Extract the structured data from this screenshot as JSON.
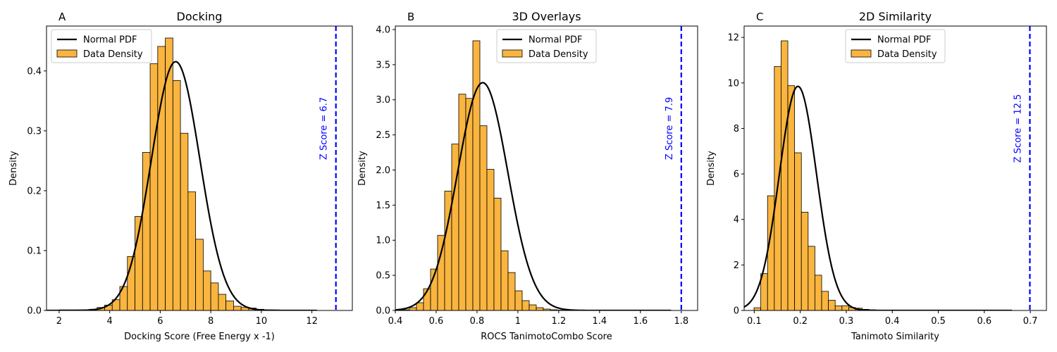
{
  "chart_data": [
    {
      "type": "bar",
      "panel_letter": "A",
      "title": "Docking",
      "xlabel": "Docking Score (Free Energy x -1)",
      "ylabel": "Density",
      "xlim": [
        1.5,
        13.6
      ],
      "ylim": [
        0,
        0.475
      ],
      "xticks": [
        2,
        4,
        6,
        8,
        10,
        12
      ],
      "yticks": [
        0.0,
        0.1,
        0.2,
        0.3,
        0.4
      ],
      "ytick_decimals": 1,
      "bin_width": 0.3,
      "bins": [
        {
          "x": 2.0,
          "value": 0.001
        },
        {
          "x": 2.3,
          "value": 0.001
        },
        {
          "x": 2.6,
          "value": 0.001
        },
        {
          "x": 2.9,
          "value": 0.001
        },
        {
          "x": 3.2,
          "value": 0.002
        },
        {
          "x": 3.5,
          "value": 0.005
        },
        {
          "x": 3.8,
          "value": 0.009
        },
        {
          "x": 4.1,
          "value": 0.018
        },
        {
          "x": 4.4,
          "value": 0.04
        },
        {
          "x": 4.7,
          "value": 0.09
        },
        {
          "x": 5.0,
          "value": 0.157
        },
        {
          "x": 5.3,
          "value": 0.264
        },
        {
          "x": 5.6,
          "value": 0.412
        },
        {
          "x": 5.9,
          "value": 0.441
        },
        {
          "x": 6.2,
          "value": 0.455
        },
        {
          "x": 6.5,
          "value": 0.384
        },
        {
          "x": 6.8,
          "value": 0.296
        },
        {
          "x": 7.1,
          "value": 0.198
        },
        {
          "x": 7.4,
          "value": 0.119
        },
        {
          "x": 7.7,
          "value": 0.066
        },
        {
          "x": 8.0,
          "value": 0.046
        },
        {
          "x": 8.3,
          "value": 0.027
        },
        {
          "x": 8.6,
          "value": 0.016
        },
        {
          "x": 8.9,
          "value": 0.007
        },
        {
          "x": 9.2,
          "value": 0.005
        },
        {
          "x": 9.5,
          "value": 0.004
        },
        {
          "x": 9.8,
          "value": 0.002
        },
        {
          "x": 10.1,
          "value": 0.001
        },
        {
          "x": 10.4,
          "value": 0.001
        },
        {
          "x": 10.7,
          "value": 0.0005
        },
        {
          "x": 11.0,
          "value": 0.0005
        },
        {
          "x": 11.3,
          "value": 0.0003
        },
        {
          "x": 11.6,
          "value": 0.0003
        },
        {
          "x": 11.9,
          "value": 0.0002
        }
      ],
      "normal_pdf": {
        "mean": 6.61,
        "sd": 0.96,
        "x_range": [
          1.5,
          12.2
        ]
      },
      "threshold": {
        "x": 12.95,
        "label": "Z Score = 6.7",
        "color": "#0000ff"
      },
      "legend": {
        "position": "upper-left",
        "entries": [
          "Normal PDF",
          "Data Density"
        ]
      }
    },
    {
      "type": "bar",
      "panel_letter": "B",
      "title": "3D Overlays",
      "xlabel": "ROCS TanimotoCombo Score",
      "ylabel": "Density",
      "xlim": [
        0.4,
        1.88
      ],
      "ylim": [
        0,
        4.05
      ],
      "xticks": [
        0.4,
        0.6,
        0.8,
        1.0,
        1.2,
        1.4,
        1.6,
        1.8
      ],
      "yticks": [
        0.0,
        0.5,
        1.0,
        1.5,
        2.0,
        2.5,
        3.0,
        3.5,
        4.0
      ],
      "ytick_decimals": 1,
      "bin_width": 0.0345,
      "bins": [
        {
          "x": 0.4,
          "value": 0.005
        },
        {
          "x": 0.4345,
          "value": 0.01
        },
        {
          "x": 0.469,
          "value": 0.04
        },
        {
          "x": 0.5035,
          "value": 0.11
        },
        {
          "x": 0.538,
          "value": 0.31
        },
        {
          "x": 0.5725,
          "value": 0.59
        },
        {
          "x": 0.607,
          "value": 1.07
        },
        {
          "x": 0.6415,
          "value": 1.7
        },
        {
          "x": 0.676,
          "value": 2.37
        },
        {
          "x": 0.7105,
          "value": 3.08
        },
        {
          "x": 0.745,
          "value": 3.02
        },
        {
          "x": 0.7795,
          "value": 3.84
        },
        {
          "x": 0.814,
          "value": 2.63
        },
        {
          "x": 0.8485,
          "value": 2.01
        },
        {
          "x": 0.883,
          "value": 1.6
        },
        {
          "x": 0.9175,
          "value": 0.85
        },
        {
          "x": 0.952,
          "value": 0.54
        },
        {
          "x": 0.9865,
          "value": 0.28
        },
        {
          "x": 1.021,
          "value": 0.14
        },
        {
          "x": 1.0555,
          "value": 0.08
        },
        {
          "x": 1.09,
          "value": 0.04
        },
        {
          "x": 1.1245,
          "value": 0.02
        },
        {
          "x": 1.159,
          "value": 0.01
        },
        {
          "x": 1.1935,
          "value": 0.005
        },
        {
          "x": 1.228,
          "value": 0.004
        },
        {
          "x": 1.2625,
          "value": 0.003
        },
        {
          "x": 1.297,
          "value": 0.002
        },
        {
          "x": 1.3315,
          "value": 0.001
        },
        {
          "x": 1.366,
          "value": 0.001
        },
        {
          "x": 1.4005,
          "value": 0.001
        },
        {
          "x": 1.435,
          "value": 0.001
        },
        {
          "x": 1.4695,
          "value": 0.0005
        },
        {
          "x": 1.504,
          "value": 0.0005
        },
        {
          "x": 1.5385,
          "value": 0.0005
        },
        {
          "x": 1.573,
          "value": 0.0005
        },
        {
          "x": 1.6075,
          "value": 0.0003
        },
        {
          "x": 1.642,
          "value": 0.0003
        },
        {
          "x": 1.6765,
          "value": 0.0003
        },
        {
          "x": 1.711,
          "value": 0.0003
        }
      ],
      "normal_pdf": {
        "mean": 0.828,
        "sd": 0.123,
        "x_range": [
          0.4,
          1.75
        ]
      },
      "threshold": {
        "x": 1.8,
        "label": "Z Score = 7.9",
        "color": "#0000ff"
      },
      "legend": {
        "position": "upper-center",
        "entries": [
          "Normal PDF",
          "Data Density"
        ]
      }
    },
    {
      "type": "bar",
      "panel_letter": "C",
      "title": "2D Similarity",
      "xlabel": "Tanimoto Similarity",
      "ylabel": "Density",
      "xlim": [
        0.078,
        0.735
      ],
      "ylim": [
        0,
        12.5
      ],
      "xticks": [
        0.1,
        0.2,
        0.3,
        0.4,
        0.5,
        0.6,
        0.7
      ],
      "yticks": [
        0,
        2,
        4,
        6,
        8,
        10,
        12
      ],
      "ytick_decimals": 0,
      "bin_width": 0.0147,
      "bins": [
        {
          "x": 0.0995,
          "value": 0.12
        },
        {
          "x": 0.1142,
          "value": 1.62
        },
        {
          "x": 0.1289,
          "value": 5.04
        },
        {
          "x": 0.1436,
          "value": 10.72
        },
        {
          "x": 0.1583,
          "value": 11.85
        },
        {
          "x": 0.173,
          "value": 9.88
        },
        {
          "x": 0.1877,
          "value": 6.93
        },
        {
          "x": 0.2024,
          "value": 4.32
        },
        {
          "x": 0.2171,
          "value": 2.82
        },
        {
          "x": 0.2318,
          "value": 1.55
        },
        {
          "x": 0.2465,
          "value": 0.84
        },
        {
          "x": 0.2612,
          "value": 0.45
        },
        {
          "x": 0.2759,
          "value": 0.2
        },
        {
          "x": 0.2906,
          "value": 0.21
        },
        {
          "x": 0.3053,
          "value": 0.13
        },
        {
          "x": 0.32,
          "value": 0.1
        },
        {
          "x": 0.3347,
          "value": 0.05
        },
        {
          "x": 0.3494,
          "value": 0.03
        },
        {
          "x": 0.3641,
          "value": 0.02
        },
        {
          "x": 0.3788,
          "value": 0.01
        },
        {
          "x": 0.3935,
          "value": 0.01
        },
        {
          "x": 0.4082,
          "value": 0.005
        },
        {
          "x": 0.4229,
          "value": 0.005
        },
        {
          "x": 0.4376,
          "value": 0.004
        },
        {
          "x": 0.4523,
          "value": 0.003
        },
        {
          "x": 0.467,
          "value": 0.003
        },
        {
          "x": 0.4817,
          "value": 0.002
        },
        {
          "x": 0.4964,
          "value": 0.002
        },
        {
          "x": 0.5111,
          "value": 0.002
        },
        {
          "x": 0.5258,
          "value": 0.001
        },
        {
          "x": 0.5405,
          "value": 0.001
        },
        {
          "x": 0.5552,
          "value": 0.001
        },
        {
          "x": 0.5699,
          "value": 0.001
        },
        {
          "x": 0.5846,
          "value": 0.001
        },
        {
          "x": 0.5993,
          "value": 0.001
        },
        {
          "x": 0.614,
          "value": 0.001
        },
        {
          "x": 0.6287,
          "value": 0.001
        },
        {
          "x": 0.6434,
          "value": 0.001
        }
      ],
      "normal_pdf": {
        "mean": 0.195,
        "sd": 0.0405,
        "x_range": [
          0.078,
          0.66
        ]
      },
      "threshold": {
        "x": 0.699,
        "label": "Z Score = 12.5",
        "color": "#0000ff"
      },
      "legend": {
        "position": "upper-center",
        "entries": [
          "Normal PDF",
          "Data Density"
        ]
      }
    }
  ],
  "colors": {
    "bar_fill": "#f9b53f",
    "bar_edge": "#000000",
    "pdf_line": "#000000",
    "threshold_line": "#0000ff"
  }
}
